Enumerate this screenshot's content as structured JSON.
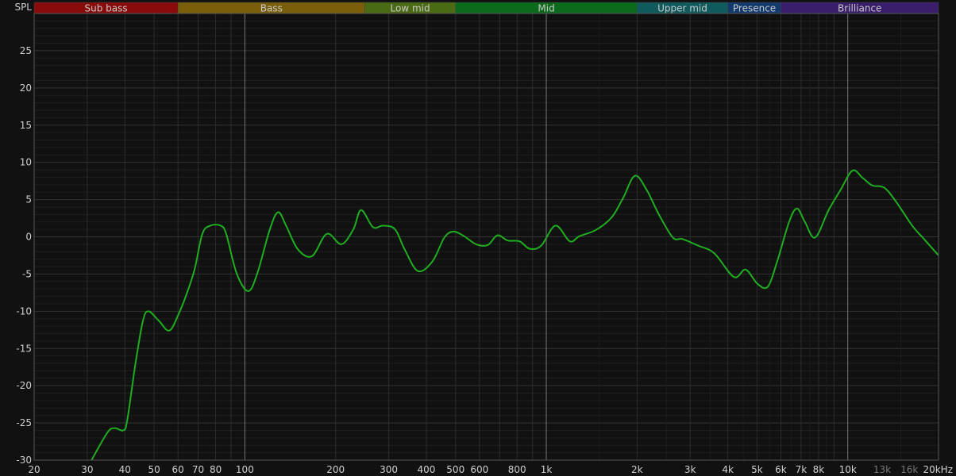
{
  "chart_data": {
    "type": "line",
    "ylabel": "SPL",
    "xscale": "log",
    "xlim": [
      20,
      20000
    ],
    "ylim": [
      -30,
      30
    ],
    "grid": true,
    "y_ticks": [
      25,
      20,
      15,
      10,
      5,
      0,
      -5,
      -10,
      -15,
      -20,
      -25,
      -30
    ],
    "x_ticks": [
      {
        "value": 20,
        "label": "20"
      },
      {
        "value": 30,
        "label": "30"
      },
      {
        "value": 40,
        "label": "40"
      },
      {
        "value": 50,
        "label": "50"
      },
      {
        "value": 60,
        "label": "60"
      },
      {
        "value": 70,
        "label": "70"
      },
      {
        "value": 80,
        "label": "80"
      },
      {
        "value": 100,
        "label": "100"
      },
      {
        "value": 200,
        "label": "200"
      },
      {
        "value": 300,
        "label": "300"
      },
      {
        "value": 400,
        "label": "400"
      },
      {
        "value": 500,
        "label": "500"
      },
      {
        "value": 600,
        "label": "600"
      },
      {
        "value": 800,
        "label": "800"
      },
      {
        "value": 1000,
        "label": "1k"
      },
      {
        "value": 2000,
        "label": "2k"
      },
      {
        "value": 3000,
        "label": "3k"
      },
      {
        "value": 4000,
        "label": "4k"
      },
      {
        "value": 5000,
        "label": "5k"
      },
      {
        "value": 6000,
        "label": "6k"
      },
      {
        "value": 7000,
        "label": "7k"
      },
      {
        "value": 8000,
        "label": "8k"
      },
      {
        "value": 10000,
        "label": "10k"
      },
      {
        "value": 13000,
        "label": "13k",
        "dim": true
      },
      {
        "value": 16000,
        "label": "16k",
        "dim": true
      },
      {
        "value": 20000,
        "label": "20kHz"
      }
    ],
    "bands": [
      {
        "name": "Sub bass",
        "from": 20,
        "to": 60,
        "color": "#8a0b0b"
      },
      {
        "name": "Bass",
        "from": 60,
        "to": 250,
        "color": "#7a5f0b"
      },
      {
        "name": "Low mid",
        "from": 250,
        "to": 500,
        "color": "#4a6b13"
      },
      {
        "name": "Mid",
        "from": 500,
        "to": 2000,
        "color": "#0c6a1d"
      },
      {
        "name": "Upper mid",
        "from": 2000,
        "to": 4000,
        "color": "#0e5a5c"
      },
      {
        "name": "Presence",
        "from": 4000,
        "to": 6000,
        "color": "#123a6c"
      },
      {
        "name": "Brilliance",
        "from": 6000,
        "to": 20000,
        "color": "#3a1d6b"
      }
    ],
    "series": [
      {
        "color": "#1fae1f",
        "x": [
          31,
          35,
          37,
          39.5,
          40.7,
          43.3,
          45.9,
          47.9,
          51.9,
          56.2,
          60.4,
          64.2,
          68.1,
          72.3,
          76.8,
          83.1,
          86.7,
          93.9,
          102.6,
          110,
          121,
          129,
          137,
          150,
          167,
          187,
          209,
          229,
          243,
          266,
          288,
          315,
          339,
          375,
          419,
          459,
          492,
          533,
          585,
          640,
          688,
          745,
          815,
          880,
          961,
          1073,
          1196,
          1290,
          1457,
          1646,
          1797,
          1967,
          2152,
          2356,
          2629,
          2829,
          3194,
          3604,
          4189,
          4583,
          5013,
          5427,
          5833,
          6387,
          6785,
          7208,
          7793,
          8641,
          9465,
          10365,
          11210,
          12060,
          13210,
          14470,
          16360,
          17900,
          20000
        ],
        "y": [
          -30,
          -26.3,
          -25.7,
          -26,
          -24.7,
          -17.2,
          -11.3,
          -10,
          -11.3,
          -12.6,
          -10.3,
          -7.6,
          -4.4,
          0.4,
          1.5,
          1.5,
          0.4,
          -4.9,
          -7.3,
          -4.9,
          1,
          3.3,
          1.5,
          -1.7,
          -2.6,
          0.4,
          -1,
          1,
          3.6,
          1.3,
          1.5,
          1,
          -1.7,
          -4.6,
          -3.3,
          -0.1,
          0.7,
          0.1,
          -1,
          -1.1,
          0.2,
          -0.5,
          -0.6,
          -1.6,
          -1.2,
          1.5,
          -0.6,
          0.1,
          0.9,
          2.6,
          5.2,
          8.2,
          6.3,
          3.1,
          -0.1,
          -0.3,
          -1.2,
          -2.2,
          -5.4,
          -4.4,
          -6.3,
          -6.7,
          -3.3,
          2,
          3.8,
          2,
          -0.1,
          3.6,
          6.3,
          8.9,
          7.9,
          6.9,
          6.6,
          4.7,
          1.5,
          -0.3,
          -2.5
        ]
      }
    ]
  }
}
